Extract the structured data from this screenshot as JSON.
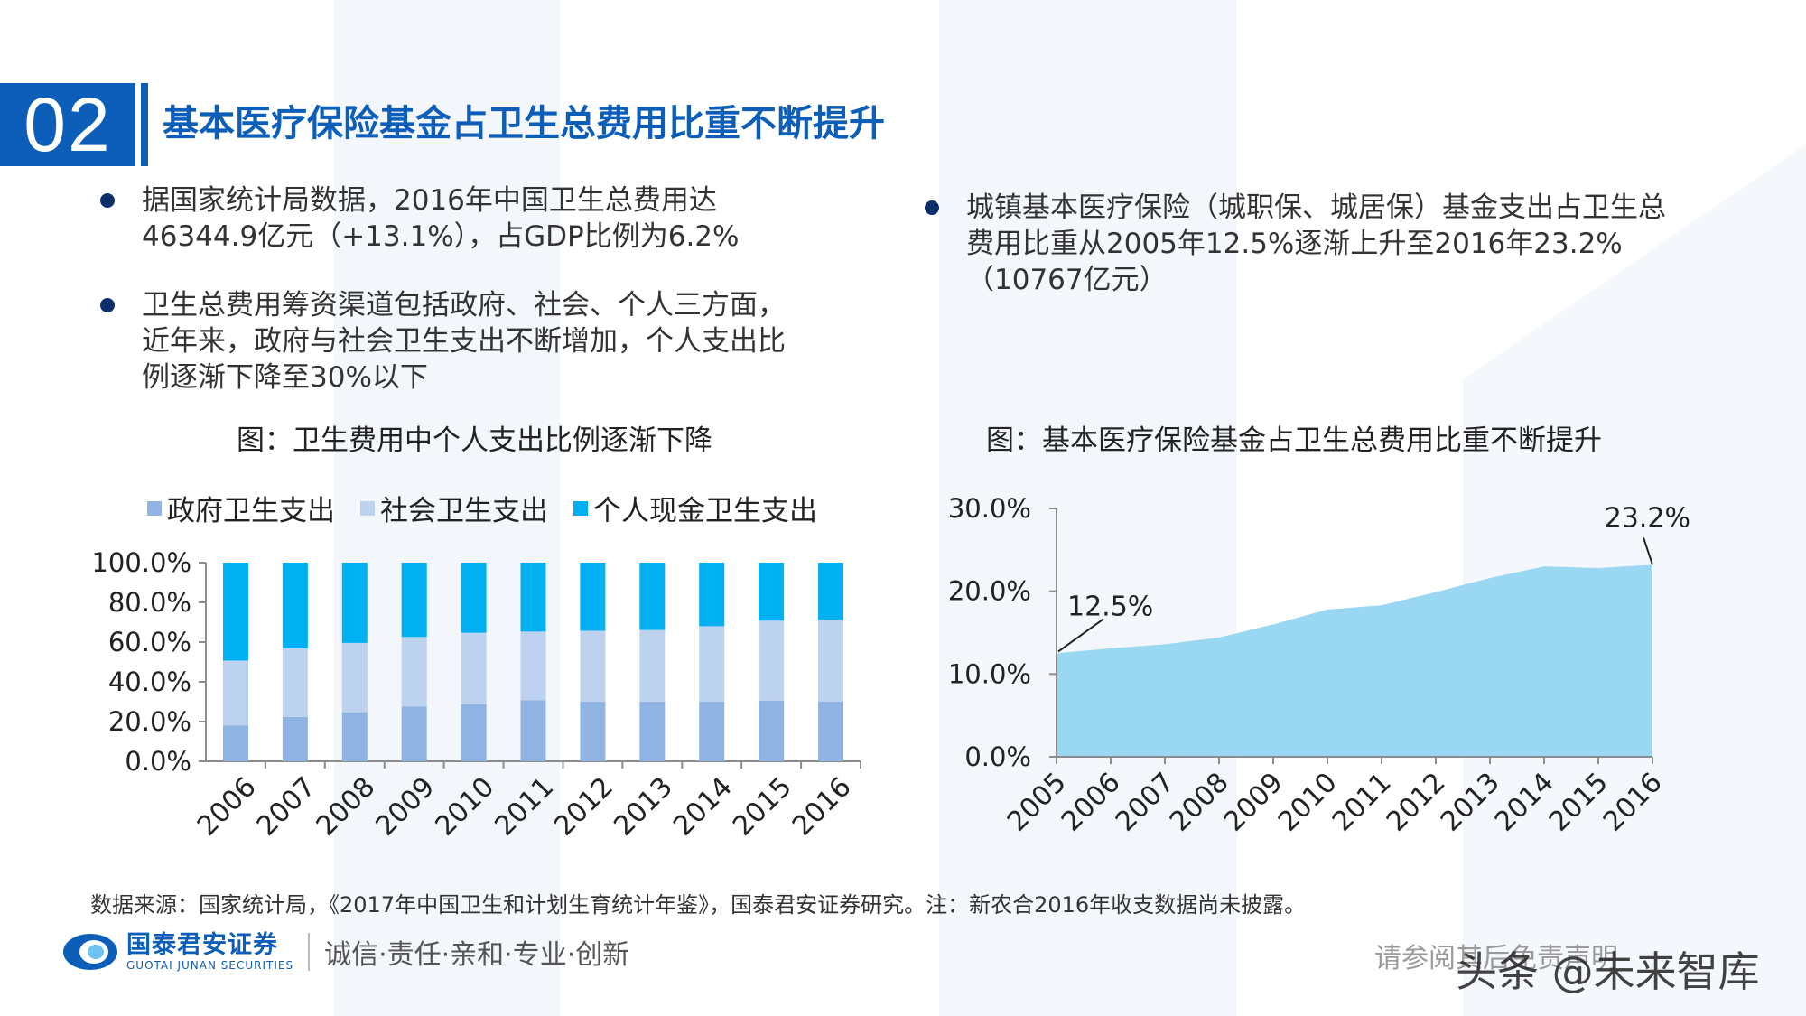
{
  "header": {
    "section_number": "02",
    "title": "基本医疗保险基金占卫生总费用比重不断提升"
  },
  "bullets_left": [
    {
      "lines": [
        "据国家统计局数据，2016年中国卫生总费用达",
        "46344.9亿元（+13.1%），占GDP比例为6.2%"
      ]
    },
    {
      "lines": [
        "卫生总费用筹资渠道包括政府、社会、个人三方面，",
        "近年来，政府与社会卫生支出不断增加，个人支出比",
        "例逐渐下降至30%以下"
      ]
    }
  ],
  "bullets_right": [
    {
      "lines": [
        "城镇基本医疗保险（城职保、城居保）基金支出占卫生总",
        "费用比重从2005年12.5%逐渐上升至2016年23.2%",
        "（10767亿元）"
      ]
    }
  ],
  "chart_data": [
    {
      "type": "bar",
      "stacked": true,
      "title": "图：卫生费用中个人支出比例逐渐下降",
      "categories": [
        "2006",
        "2007",
        "2008",
        "2009",
        "2010",
        "2011",
        "2012",
        "2013",
        "2014",
        "2015",
        "2016"
      ],
      "series": [
        {
          "name": "政府卫生支出",
          "color": "#8fb4e3",
          "values": [
            18.1,
            22.3,
            24.7,
            27.5,
            28.7,
            30.7,
            30.0,
            30.1,
            30.0,
            30.5,
            30.0
          ]
        },
        {
          "name": "社会卫生支出",
          "color": "#bcd2ee",
          "values": [
            32.6,
            34.5,
            34.9,
            35.1,
            36.0,
            34.6,
            35.7,
            36.0,
            38.0,
            40.3,
            41.2
          ]
        },
        {
          "name": "个人现金卫生支出",
          "color": "#00b0f0",
          "values": [
            49.3,
            43.2,
            40.4,
            37.4,
            35.3,
            34.7,
            34.3,
            33.9,
            32.0,
            29.2,
            28.8
          ]
        }
      ],
      "ylim": [
        0,
        100
      ],
      "yticks": [
        "100.0%",
        "80.0%",
        "60.0%",
        "40.0%",
        "20.0%",
        "0.0%"
      ],
      "legend": "top"
    },
    {
      "type": "area",
      "title": "图：基本医疗保险基金占卫生总费用比重不断提升",
      "x": [
        "2005",
        "2006",
        "2007",
        "2008",
        "2009",
        "2010",
        "2011",
        "2012",
        "2013",
        "2014",
        "2015",
        "2016"
      ],
      "values": [
        12.5,
        13.1,
        13.6,
        14.4,
        16.0,
        17.8,
        18.3,
        19.9,
        21.6,
        23.0,
        22.8,
        23.2
      ],
      "ylim": [
        0,
        30
      ],
      "yticks": [
        "30.0%",
        "20.0%",
        "10.0%",
        "0.0%"
      ],
      "annotations": [
        "12.5%",
        "23.2%"
      ],
      "color": "#9ad7f2"
    }
  ],
  "footer": {
    "source": "数据来源：国家统计局，《2017年中国卫生和计划生育统计年鉴》，国泰君安证券研究。注：新农合2016年收支数据尚未披露。",
    "company_cn": "国泰君安证券",
    "company_en": "GUOTAI JUNAN SECURITIES",
    "motto": "诚信·责任·亲和·专业·创新",
    "disclaimer": "请参阅其后免责声明",
    "watermark": "头条 @未来智库"
  }
}
